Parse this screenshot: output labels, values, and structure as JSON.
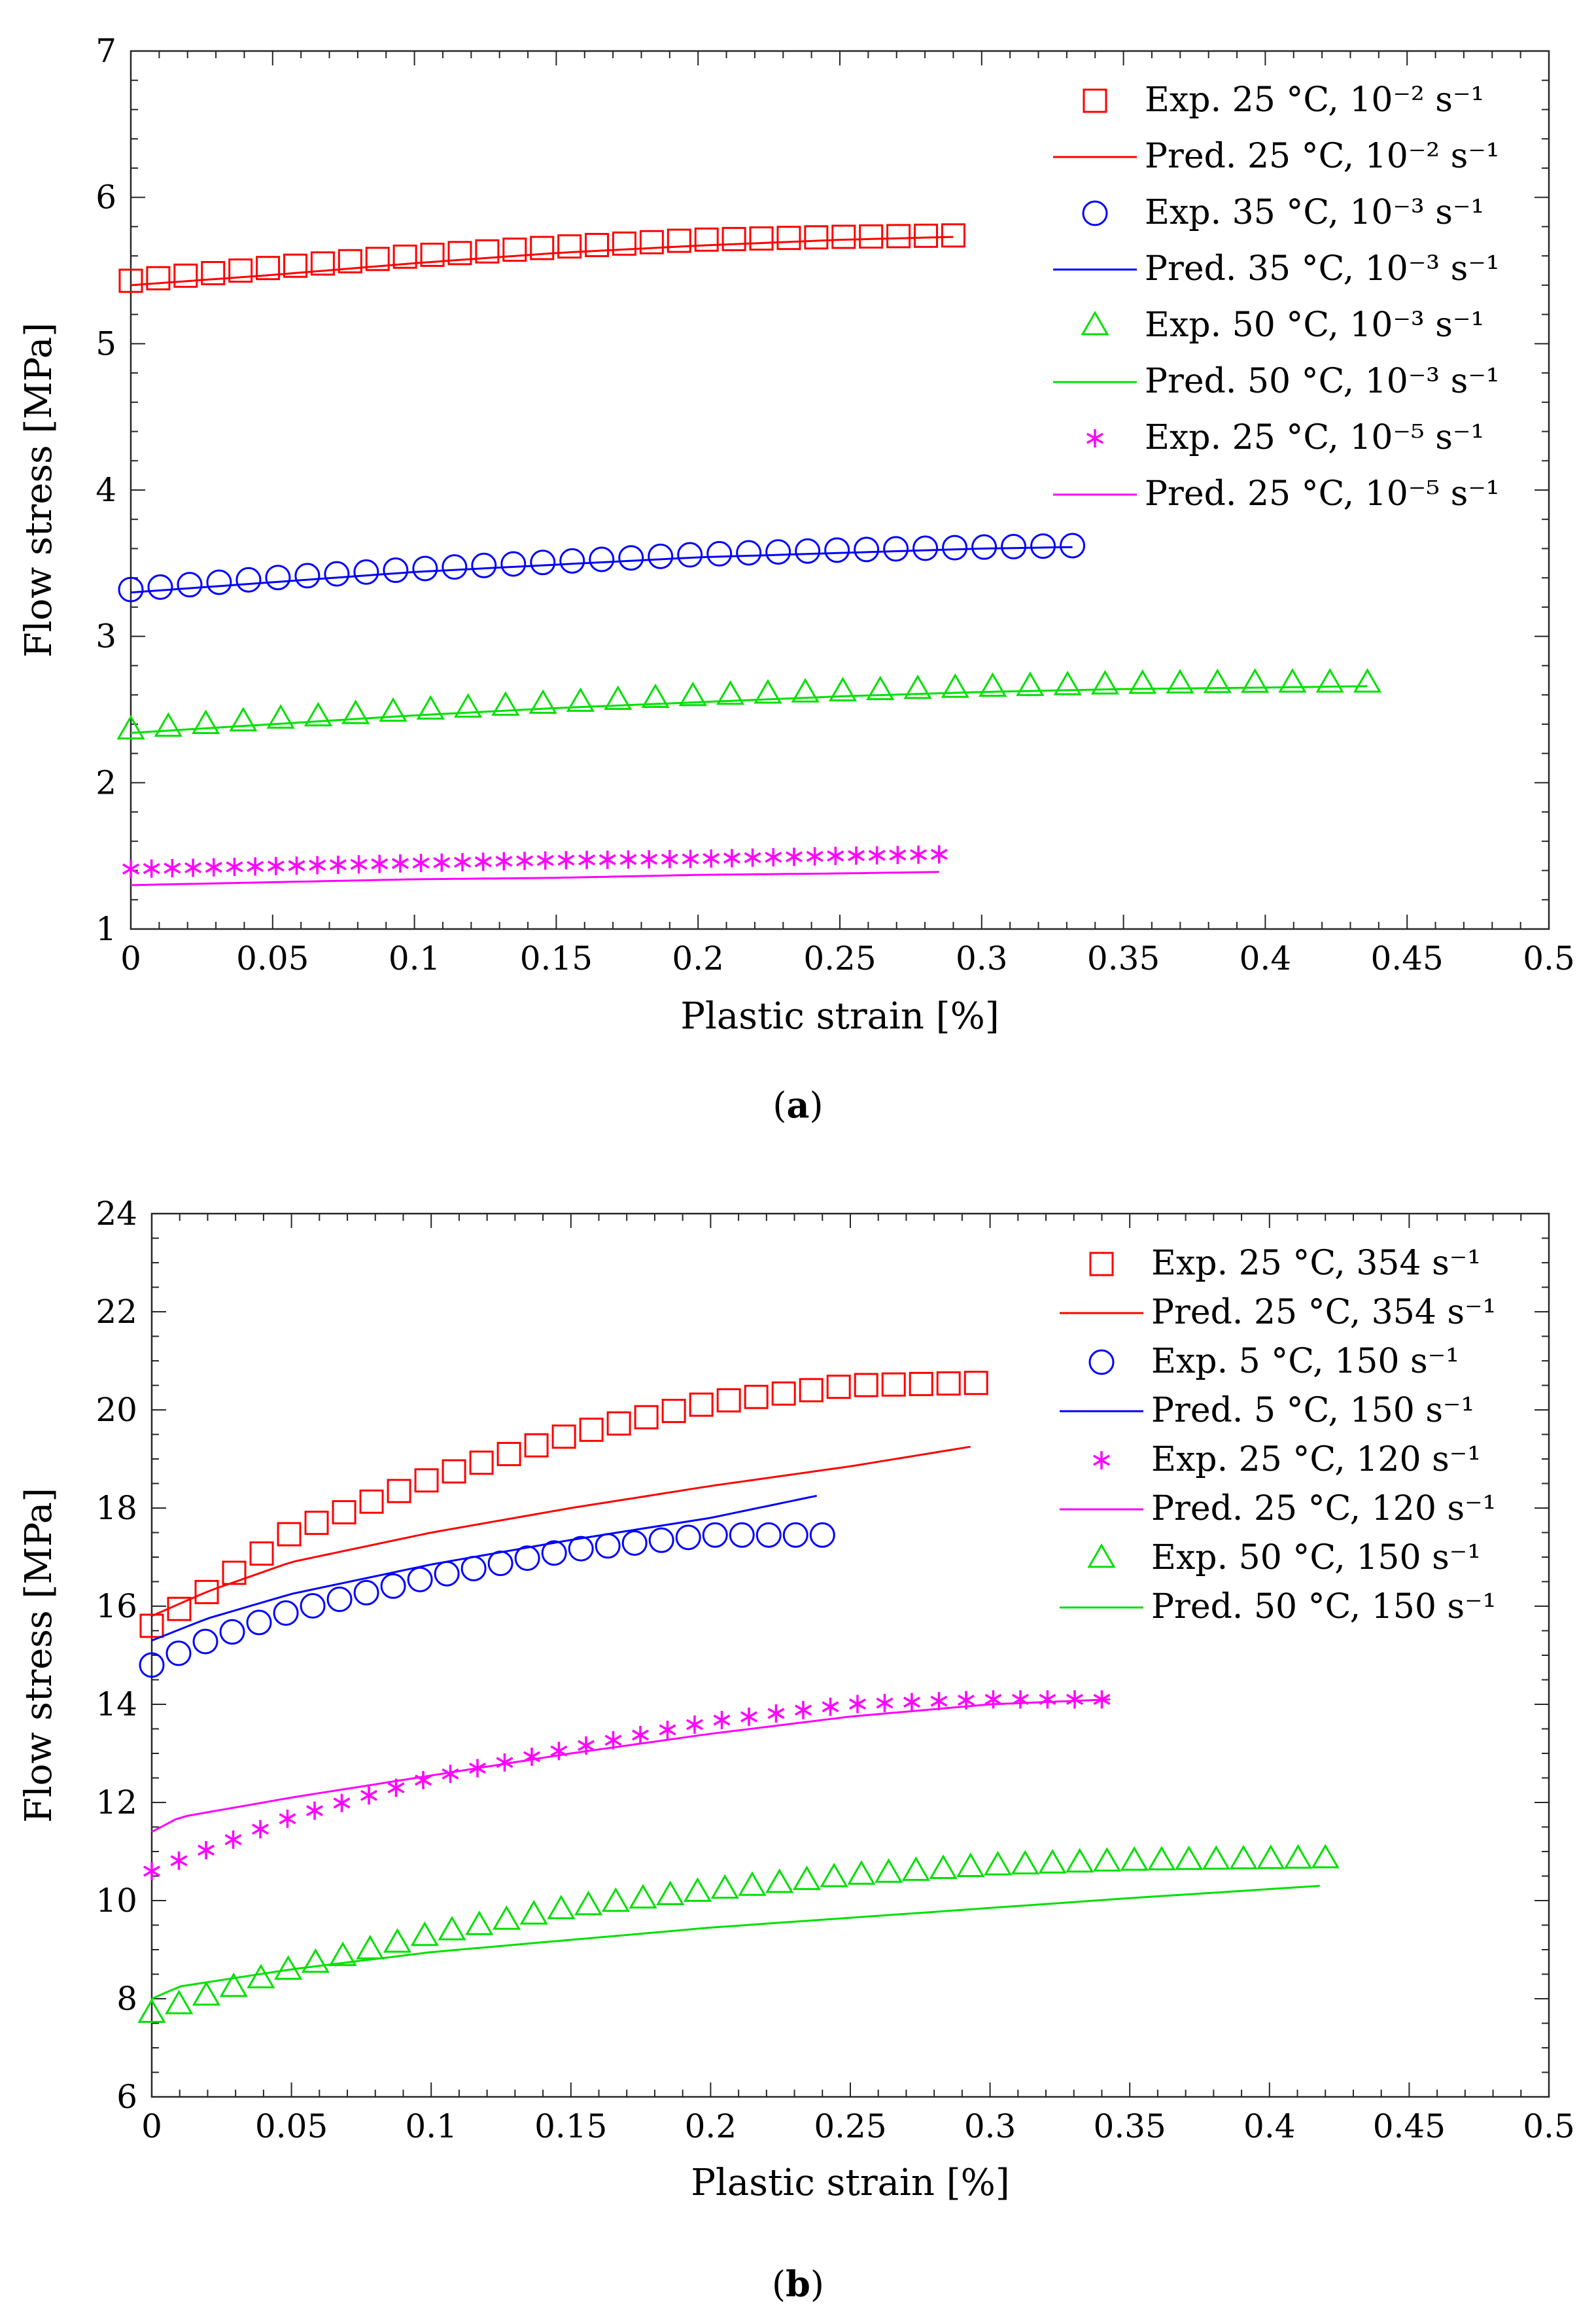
{
  "figure": {
    "panels": [
      {
        "caption_label": "a",
        "xlabel": "Plastic strain [%]",
        "ylabel": "Flow stress [MPa]"
      },
      {
        "caption_label": "b",
        "xlabel": "Plastic strain [%]",
        "ylabel": "Flow stress [MPa]"
      }
    ]
  },
  "chart_data": [
    {
      "type": "line",
      "xlim": [
        0,
        0.5
      ],
      "ylim": [
        1,
        7
      ],
      "xticks": [
        "0",
        "0.05",
        "0.1",
        "0.15",
        "0.2",
        "0.25",
        "0.3",
        "0.35",
        "0.4",
        "0.45",
        "0.5"
      ],
      "yticks": [
        "1",
        "2",
        "3",
        "4",
        "5",
        "6",
        "7"
      ],
      "xlabel": "Plastic strain [%]",
      "ylabel": "Flow stress [MPa]",
      "grid": false,
      "legend_position": "top-right",
      "series": [
        {
          "name": "Exp. 25 °C, 10⁻² s⁻¹",
          "kind": "exp",
          "marker": "square",
          "color": "#ff0000",
          "x_start": 0,
          "x_end": 0.29,
          "points": 31,
          "curve": [
            [
              0,
              5.43
            ],
            [
              0.05,
              5.52
            ],
            [
              0.1,
              5.6
            ],
            [
              0.15,
              5.66
            ],
            [
              0.2,
              5.71
            ],
            [
              0.25,
              5.73
            ],
            [
              0.29,
              5.74
            ]
          ]
        },
        {
          "name": "Pred. 25 °C, 10⁻² s⁻¹",
          "kind": "pred",
          "color": "#ff0000",
          "curve": [
            [
              0,
              5.4
            ],
            [
              0.05,
              5.47
            ],
            [
              0.1,
              5.55
            ],
            [
              0.15,
              5.62
            ],
            [
              0.2,
              5.67
            ],
            [
              0.25,
              5.71
            ],
            [
              0.29,
              5.73
            ]
          ]
        },
        {
          "name": "Exp. 35 °C, 10⁻³ s⁻¹",
          "kind": "exp",
          "marker": "circle",
          "color": "#0000ff",
          "x_start": 0,
          "x_end": 0.332,
          "points": 33,
          "curve": [
            [
              0,
              3.32
            ],
            [
              0.05,
              3.4
            ],
            [
              0.1,
              3.46
            ],
            [
              0.15,
              3.51
            ],
            [
              0.2,
              3.56
            ],
            [
              0.25,
              3.59
            ],
            [
              0.3,
              3.61
            ],
            [
              0.332,
              3.62
            ]
          ]
        },
        {
          "name": "Pred. 35 °C, 10⁻³ s⁻¹",
          "kind": "pred",
          "color": "#0000ff",
          "curve": [
            [
              0,
              3.3
            ],
            [
              0.05,
              3.37
            ],
            [
              0.1,
              3.44
            ],
            [
              0.15,
              3.49
            ],
            [
              0.2,
              3.54
            ],
            [
              0.25,
              3.57
            ],
            [
              0.3,
              3.6
            ],
            [
              0.332,
              3.61
            ]
          ]
        },
        {
          "name": "Exp. 50 °C, 10⁻³ s⁻¹",
          "kind": "exp",
          "marker": "triangle",
          "color": "#00e000",
          "x_start": 0,
          "x_end": 0.436,
          "points": 34,
          "curve": [
            [
              0,
              2.36
            ],
            [
              0.05,
              2.43
            ],
            [
              0.1,
              2.49
            ],
            [
              0.15,
              2.54
            ],
            [
              0.2,
              2.59
            ],
            [
              0.25,
              2.62
            ],
            [
              0.3,
              2.65
            ],
            [
              0.35,
              2.67
            ],
            [
              0.4,
              2.68
            ],
            [
              0.436,
              2.68
            ]
          ]
        },
        {
          "name": "Pred. 50 °C, 10⁻³ s⁻¹",
          "kind": "pred",
          "color": "#00e000",
          "curve": [
            [
              0,
              2.34
            ],
            [
              0.05,
              2.4
            ],
            [
              0.1,
              2.46
            ],
            [
              0.15,
              2.51
            ],
            [
              0.2,
              2.55
            ],
            [
              0.25,
              2.59
            ],
            [
              0.3,
              2.62
            ],
            [
              0.35,
              2.64
            ],
            [
              0.4,
              2.65
            ],
            [
              0.436,
              2.66
            ]
          ]
        },
        {
          "name": "Exp. 25 °C, 10⁻⁵ s⁻¹",
          "kind": "exp",
          "marker": "asterisk",
          "color": "#ff00ff",
          "x_start": 0,
          "x_end": 0.285,
          "points": 40,
          "curve": [
            [
              0,
              1.41
            ],
            [
              0.05,
              1.43
            ],
            [
              0.1,
              1.45
            ],
            [
              0.15,
              1.47
            ],
            [
              0.2,
              1.48
            ],
            [
              0.25,
              1.5
            ],
            [
              0.285,
              1.51
            ]
          ]
        },
        {
          "name": "Pred. 25 °C, 10⁻⁵ s⁻¹",
          "kind": "pred",
          "color": "#ff00ff",
          "curve": [
            [
              0,
              1.3
            ],
            [
              0.05,
              1.32
            ],
            [
              0.1,
              1.34
            ],
            [
              0.15,
              1.35
            ],
            [
              0.2,
              1.37
            ],
            [
              0.25,
              1.38
            ],
            [
              0.285,
              1.39
            ]
          ]
        }
      ]
    },
    {
      "type": "line",
      "xlim": [
        0,
        0.5
      ],
      "ylim": [
        6,
        24
      ],
      "xticks": [
        "0",
        "0.05",
        "0.1",
        "0.15",
        "0.2",
        "0.25",
        "0.3",
        "0.35",
        "0.4",
        "0.45",
        "0.5"
      ],
      "yticks": [
        "6",
        "8",
        "10",
        "12",
        "14",
        "16",
        "18",
        "20",
        "22",
        "24"
      ],
      "xlabel": "Plastic strain [%]",
      "ylabel": "Flow stress [MPa]",
      "grid": false,
      "legend_position": "top-right",
      "series": [
        {
          "name": "Exp. 25 °C, 354 s⁻¹",
          "kind": "exp",
          "marker": "square",
          "color": "#ff0000",
          "x_start": 0,
          "x_end": 0.295,
          "points": 31,
          "curve": [
            [
              0,
              15.6
            ],
            [
              0.02,
              16.3
            ],
            [
              0.05,
              17.5
            ],
            [
              0.1,
              18.6
            ],
            [
              0.15,
              19.5
            ],
            [
              0.2,
              20.15
            ],
            [
              0.25,
              20.5
            ],
            [
              0.295,
              20.55
            ]
          ]
        },
        {
          "name": "Pred. 25 °C, 354 s⁻¹",
          "kind": "pred",
          "color": "#ff0000",
          "curve": [
            [
              0,
              15.8
            ],
            [
              0.02,
              16.3
            ],
            [
              0.05,
              16.9
            ],
            [
              0.1,
              17.5
            ],
            [
              0.15,
              18.0
            ],
            [
              0.2,
              18.45
            ],
            [
              0.25,
              18.85
            ],
            [
              0.293,
              19.25
            ]
          ]
        },
        {
          "name": "Exp. 5 °C, 150 s⁻¹",
          "kind": "exp",
          "marker": "circle",
          "color": "#0000ff",
          "x_start": 0,
          "x_end": 0.24,
          "points": 26,
          "curve": [
            [
              0,
              14.8
            ],
            [
              0.02,
              15.3
            ],
            [
              0.05,
              15.9
            ],
            [
              0.1,
              16.6
            ],
            [
              0.15,
              17.15
            ],
            [
              0.2,
              17.45
            ],
            [
              0.24,
              17.45
            ]
          ]
        },
        {
          "name": "Pred. 5 °C, 150 s⁻¹",
          "kind": "pred",
          "color": "#0000ff",
          "curve": [
            [
              0,
              15.3
            ],
            [
              0.02,
              15.75
            ],
            [
              0.05,
              16.25
            ],
            [
              0.1,
              16.85
            ],
            [
              0.15,
              17.35
            ],
            [
              0.2,
              17.8
            ],
            [
              0.238,
              18.25
            ]
          ]
        },
        {
          "name": "Exp. 25 °C, 120 s⁻¹",
          "kind": "exp",
          "marker": "asterisk",
          "color": "#ff00ff",
          "x_start": 0,
          "x_end": 0.34,
          "points": 36,
          "curve": [
            [
              0,
              10.6
            ],
            [
              0.05,
              11.7
            ],
            [
              0.1,
              12.5
            ],
            [
              0.15,
              13.1
            ],
            [
              0.2,
              13.65
            ],
            [
              0.25,
              14.0
            ],
            [
              0.3,
              14.1
            ],
            [
              0.34,
              14.1
            ]
          ]
        },
        {
          "name": "Pred. 25 °C, 120 s⁻¹",
          "kind": "pred",
          "color": "#ff00ff",
          "curve": [
            [
              0,
              11.4
            ],
            [
              0.01,
              11.7
            ],
            [
              0.05,
              12.1
            ],
            [
              0.1,
              12.55
            ],
            [
              0.15,
              13.0
            ],
            [
              0.2,
              13.4
            ],
            [
              0.25,
              13.75
            ],
            [
              0.3,
              14.0
            ],
            [
              0.343,
              14.1
            ]
          ]
        },
        {
          "name": "Exp. 50 °C, 150 s⁻¹",
          "kind": "exp",
          "marker": "triangle",
          "color": "#00e000",
          "x_start": 0,
          "x_end": 0.42,
          "points": 44,
          "curve": [
            [
              0,
              7.7
            ],
            [
              0.05,
              8.6
            ],
            [
              0.1,
              9.3
            ],
            [
              0.15,
              9.85
            ],
            [
              0.2,
              10.2
            ],
            [
              0.25,
              10.5
            ],
            [
              0.3,
              10.7
            ],
            [
              0.35,
              10.8
            ],
            [
              0.42,
              10.85
            ]
          ]
        },
        {
          "name": "Pred. 50 °C, 150 s⁻¹",
          "kind": "pred",
          "color": "#00e000",
          "curve": [
            [
              0,
              8.0
            ],
            [
              0.01,
              8.25
            ],
            [
              0.05,
              8.6
            ],
            [
              0.1,
              8.95
            ],
            [
              0.15,
              9.2
            ],
            [
              0.2,
              9.45
            ],
            [
              0.25,
              9.65
            ],
            [
              0.3,
              9.85
            ],
            [
              0.35,
              10.05
            ],
            [
              0.418,
              10.3
            ]
          ]
        }
      ]
    }
  ]
}
